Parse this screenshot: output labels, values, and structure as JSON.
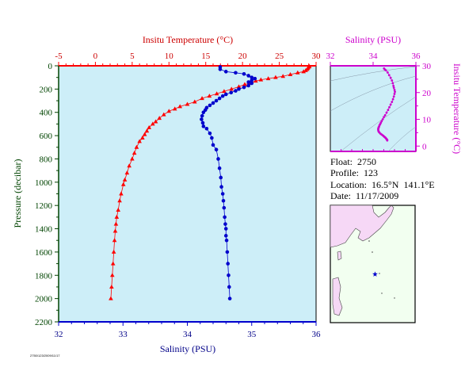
{
  "colors": {
    "temperature": "#ff0000",
    "salinity": "#0000cc",
    "salinity_ts": "#cc00cc",
    "pressure_axis": "#004400",
    "plot_bg": "#cdeef8",
    "land": "#f6d8f6",
    "sea": "#f2fff0",
    "float_marker": "#0000cc"
  },
  "info": {
    "float": "Float:  2750",
    "profile": "Profile:  123",
    "location": "Location:  16.5°N  141.1°E",
    "date": "Date:  11/17/2009"
  },
  "footer_tag": "2750/123/2009/11/17",
  "chart_data": [
    {
      "type": "line",
      "title": "",
      "y_label": "Pressure (decibar)",
      "ylim": [
        2200,
        0
      ],
      "y_ticks": [
        "0",
        "200",
        "400",
        "600",
        "800",
        "1000",
        "1200",
        "1400",
        "1600",
        "1800",
        "2000",
        "2200"
      ],
      "top_axis_label": "Insitu Temperature (°C)",
      "top_lim": [
        -5,
        30
      ],
      "top_ticks": [
        "-5",
        "0",
        "5",
        "10",
        "15",
        "20",
        "25",
        "30"
      ],
      "bottom_axis_label": "Salinity (PSU)",
      "bottom_lim": [
        32,
        36
      ],
      "bottom_ticks": [
        "32",
        "33",
        "34",
        "35",
        "36"
      ],
      "grid": false,
      "series": [
        {
          "x_axis": "temperature",
          "marker": "triangle",
          "points": [
            [
              29.1,
              5
            ],
            [
              29.0,
              10
            ],
            [
              28.9,
              20
            ],
            [
              28.8,
              30
            ],
            [
              28.6,
              40
            ],
            [
              28.3,
              50
            ],
            [
              27.5,
              60
            ],
            [
              26.5,
              75
            ],
            [
              25.5,
              90
            ],
            [
              24.5,
              100
            ],
            [
              23.5,
              110
            ],
            [
              22.5,
              120
            ],
            [
              21.8,
              130
            ],
            [
              21.0,
              150
            ],
            [
              20.3,
              160
            ],
            [
              19.5,
              180
            ],
            [
              18.5,
              200
            ],
            [
              17.5,
              220
            ],
            [
              16.5,
              240
            ],
            [
              15.5,
              260
            ],
            [
              14.5,
              280
            ],
            [
              13.5,
              310
            ],
            [
              12.5,
              330
            ],
            [
              11.5,
              350
            ],
            [
              10.8,
              370
            ],
            [
              10.0,
              390
            ],
            [
              9.3,
              420
            ],
            [
              8.7,
              450
            ],
            [
              8.2,
              480
            ],
            [
              7.8,
              500
            ],
            [
              7.3,
              530
            ],
            [
              7.0,
              560
            ],
            [
              6.7,
              590
            ],
            [
              6.4,
              620
            ],
            [
              6.0,
              650
            ],
            [
              5.6,
              700
            ],
            [
              5.3,
              750
            ],
            [
              5.0,
              800
            ],
            [
              4.6,
              860
            ],
            [
              4.3,
              920
            ],
            [
              4.0,
              980
            ],
            [
              3.8,
              1020
            ],
            [
              3.5,
              1100
            ],
            [
              3.3,
              1160
            ],
            [
              3.1,
              1240
            ],
            [
              2.9,
              1300
            ],
            [
              2.8,
              1360
            ],
            [
              2.7,
              1420
            ],
            [
              2.6,
              1500
            ],
            [
              2.5,
              1600
            ],
            [
              2.4,
              1700
            ],
            [
              2.3,
              1800
            ],
            [
              2.2,
              1900
            ],
            [
              2.1,
              2000
            ]
          ]
        },
        {
          "x_axis": "salinity",
          "marker": "circle",
          "points": [
            [
              34.51,
              10
            ],
            [
              34.51,
              30
            ],
            [
              34.6,
              50
            ],
            [
              34.75,
              60
            ],
            [
              34.88,
              70
            ],
            [
              34.95,
              85
            ],
            [
              35.0,
              100
            ],
            [
              35.05,
              110
            ],
            [
              35.0,
              125
            ],
            [
              34.95,
              140
            ],
            [
              35.0,
              150
            ],
            [
              34.95,
              170
            ],
            [
              34.88,
              185
            ],
            [
              34.8,
              200
            ],
            [
              34.75,
              215
            ],
            [
              34.68,
              230
            ],
            [
              34.6,
              245
            ],
            [
              34.55,
              260
            ],
            [
              34.5,
              280
            ],
            [
              34.45,
              300
            ],
            [
              34.4,
              320
            ],
            [
              34.35,
              340
            ],
            [
              34.3,
              360
            ],
            [
              34.28,
              380
            ],
            [
              34.25,
              400
            ],
            [
              34.23,
              430
            ],
            [
              34.22,
              460
            ],
            [
              34.24,
              490
            ],
            [
              34.25,
              520
            ],
            [
              34.3,
              540
            ],
            [
              34.35,
              580
            ],
            [
              34.38,
              620
            ],
            [
              34.4,
              680
            ],
            [
              34.45,
              720
            ],
            [
              34.48,
              800
            ],
            [
              34.5,
              880
            ],
            [
              34.52,
              960
            ],
            [
              34.53,
              1040
            ],
            [
              34.55,
              1100
            ],
            [
              34.56,
              1160
            ],
            [
              34.57,
              1220
            ],
            [
              34.58,
              1300
            ],
            [
              34.59,
              1360
            ],
            [
              34.6,
              1400
            ],
            [
              34.6,
              1460
            ],
            [
              34.61,
              1500
            ],
            [
              34.62,
              1600
            ],
            [
              34.63,
              1700
            ],
            [
              34.64,
              1800
            ],
            [
              34.65,
              1900
            ],
            [
              34.66,
              2000
            ]
          ]
        }
      ]
    },
    {
      "type": "scatter",
      "title": "",
      "x_label": "Salinity (PSU)",
      "xlim": [
        32,
        36
      ],
      "x_ticks": [
        "32",
        "34",
        "36"
      ],
      "y_label": "Insitu Temperature (°C)",
      "ylim": [
        -2,
        30
      ],
      "y_ticks": [
        "0",
        "10",
        "20",
        "30"
      ],
      "density_contours": true,
      "points": [
        [
          34.51,
          29
        ],
        [
          34.55,
          28.6
        ],
        [
          34.6,
          28.3
        ],
        [
          34.68,
          27.5
        ],
        [
          34.75,
          26.5
        ],
        [
          34.82,
          25.5
        ],
        [
          34.88,
          24.5
        ],
        [
          34.92,
          23.5
        ],
        [
          34.95,
          22.5
        ],
        [
          34.97,
          21.8
        ],
        [
          35.0,
          21.0
        ],
        [
          35.02,
          20.3
        ],
        [
          35.0,
          19.5
        ],
        [
          34.97,
          18.5
        ],
        [
          34.93,
          17.5
        ],
        [
          34.88,
          16.5
        ],
        [
          34.82,
          15.5
        ],
        [
          34.76,
          14.5
        ],
        [
          34.7,
          13.5
        ],
        [
          34.63,
          12.5
        ],
        [
          34.56,
          11.5
        ],
        [
          34.5,
          10.8
        ],
        [
          34.45,
          10.0
        ],
        [
          34.4,
          9.3
        ],
        [
          34.36,
          8.7
        ],
        [
          34.33,
          8.2
        ],
        [
          34.3,
          7.8
        ],
        [
          34.28,
          7.3
        ],
        [
          34.26,
          7.0
        ],
        [
          34.25,
          6.7
        ],
        [
          34.24,
          6.4
        ],
        [
          34.24,
          6.0
        ],
        [
          34.25,
          5.6
        ],
        [
          34.27,
          5.3
        ],
        [
          34.3,
          5.0
        ],
        [
          34.35,
          4.6
        ],
        [
          34.4,
          4.3
        ],
        [
          34.45,
          4.0
        ],
        [
          34.48,
          3.8
        ],
        [
          34.52,
          3.5
        ],
        [
          34.55,
          3.3
        ],
        [
          34.58,
          3.1
        ],
        [
          34.6,
          2.9
        ],
        [
          34.62,
          2.7
        ],
        [
          34.64,
          2.5
        ],
        [
          34.66,
          2.3
        ],
        [
          34.66,
          2.1
        ]
      ]
    },
    {
      "type": "map",
      "title": "",
      "lon_range": [
        120,
        160
      ],
      "lat_range": [
        0,
        40
      ],
      "float_position": {
        "lat": 16.5,
        "lon": 141.1
      }
    }
  ]
}
